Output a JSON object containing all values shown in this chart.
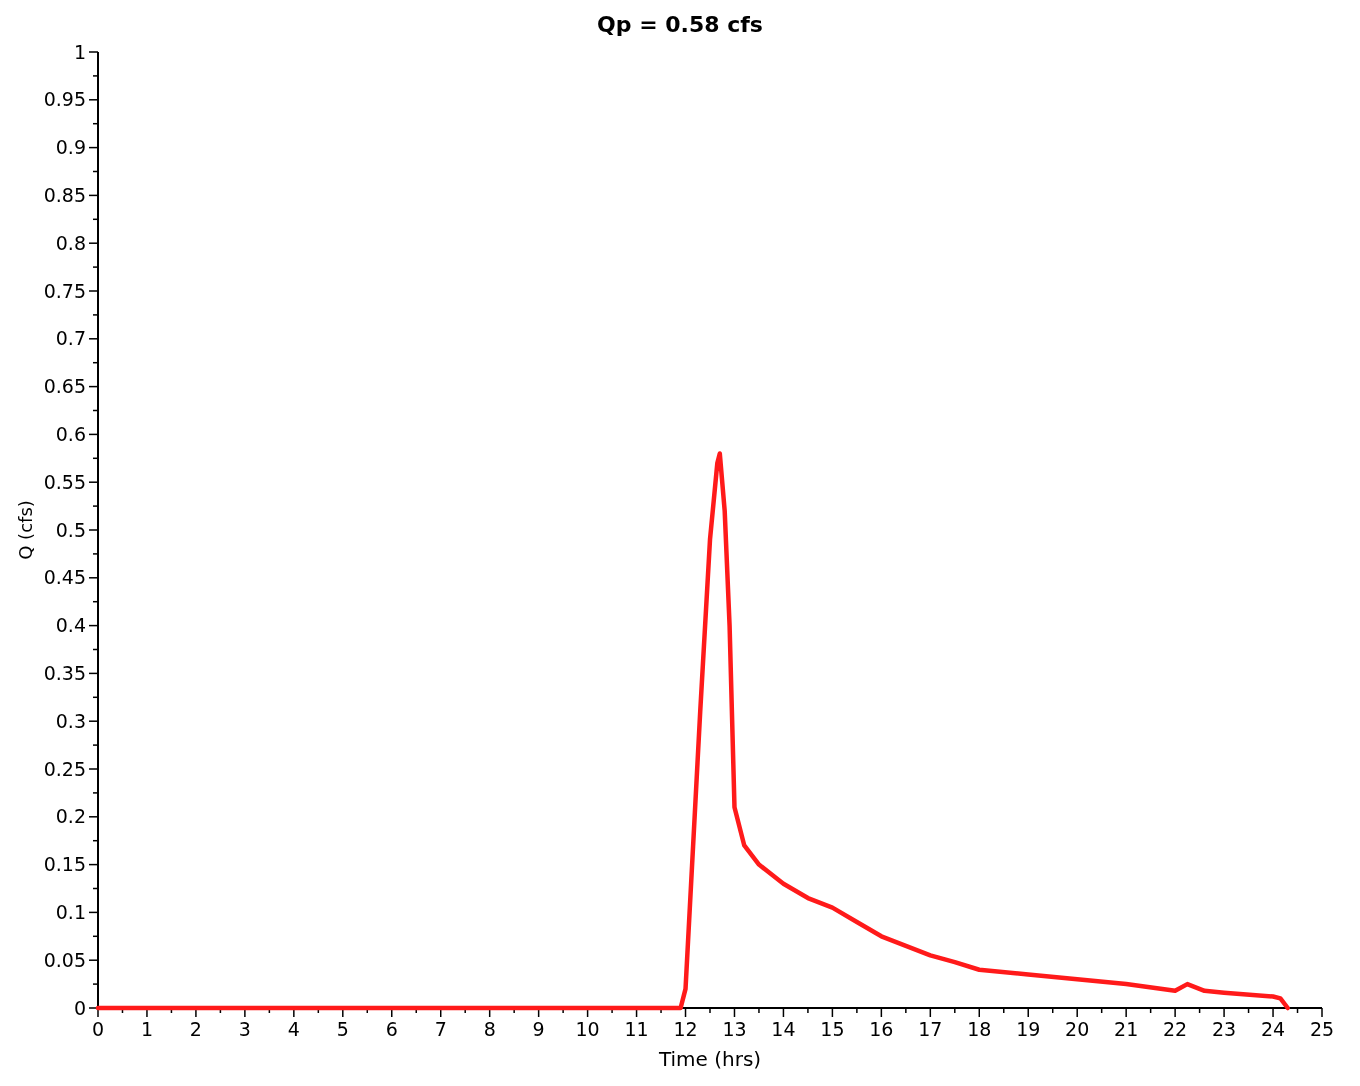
{
  "chart_data": {
    "type": "line",
    "title": "Qp = 0.58 cfs",
    "xlabel": "Time (hrs)",
    "ylabel": "Q (cfs)",
    "x": [
      0,
      6,
      11.9,
      12.0,
      12.3,
      12.5,
      12.65,
      12.7,
      12.8,
      12.9,
      13.0,
      13.2,
      13.5,
      14,
      14.5,
      15,
      15.5,
      16,
      16.5,
      17,
      17.5,
      18,
      19,
      20,
      21,
      22,
      22.25,
      22.6,
      23,
      24,
      24.15,
      24.3
    ],
    "series": [
      {
        "color": "#ff1a1a",
        "values": [
          0,
          0,
          0,
          0.02,
          0.31,
          0.49,
          0.57,
          0.58,
          0.52,
          0.4,
          0.21,
          0.17,
          0.15,
          0.13,
          0.115,
          0.105,
          0.09,
          0.075,
          0.065,
          0.055,
          0.048,
          0.04,
          0.035,
          0.03,
          0.025,
          0.018,
          0.025,
          0.018,
          0.016,
          0.012,
          0.01,
          0
        ]
      }
    ],
    "xlim": [
      0,
      25
    ],
    "xticks": [
      0,
      {
        "value": 0.5,
        "label": null
      },
      1,
      {
        "value": 1.5,
        "label": null
      },
      2,
      {
        "value": 2.5,
        "label": null
      },
      3,
      {
        "value": 3.5,
        "label": null
      },
      4,
      {
        "value": 4.5,
        "label": null
      },
      5,
      {
        "value": 5.5,
        "label": null
      },
      6,
      {
        "value": 6.5,
        "label": null
      },
      7,
      {
        "value": 7.5,
        "label": null
      },
      8,
      {
        "value": 8.5,
        "label": null
      },
      9,
      {
        "value": 9.5,
        "label": null
      },
      10,
      {
        "value": 10.5,
        "label": null
      },
      11,
      {
        "value": 11.5,
        "label": null
      },
      12,
      {
        "value": 12.5,
        "label": null
      },
      13,
      {
        "value": 13.5,
        "label": null
      },
      14,
      {
        "value": 14.5,
        "label": null
      },
      15,
      {
        "value": 15.5,
        "label": null
      },
      16,
      {
        "value": 16.5,
        "label": null
      },
      17,
      {
        "value": 17.5,
        "label": null
      },
      18,
      {
        "value": 18.5,
        "label": null
      },
      19,
      {
        "value": 19.5,
        "label": null
      },
      20,
      {
        "value": 20.5,
        "label": null
      },
      21,
      {
        "value": 21.5,
        "label": null
      },
      22,
      {
        "value": 22.5,
        "label": null
      },
      23,
      {
        "value": 23.5,
        "label": null
      },
      24,
      {
        "value": 24.5,
        "label": null
      },
      25
    ],
    "ylim": [
      0,
      1
    ],
    "yticks": [
      0,
      {
        "value": 0.025,
        "label": null
      },
      0.05,
      {
        "value": 0.075,
        "label": null
      },
      0.1,
      {
        "value": 0.125,
        "label": null
      },
      0.15,
      {
        "value": 0.175,
        "label": null
      },
      0.2,
      {
        "value": 0.225,
        "label": null
      },
      0.25,
      {
        "value": 0.275,
        "label": null
      },
      0.3,
      {
        "value": 0.325,
        "label": null
      },
      0.35,
      {
        "value": 0.375,
        "label": null
      },
      0.4,
      {
        "value": 0.425,
        "label": null
      },
      0.45,
      {
        "value": 0.475,
        "label": null
      },
      0.5,
      {
        "value": 0.525,
        "label": null
      },
      0.55,
      {
        "value": 0.575,
        "label": null
      },
      0.6,
      {
        "value": 0.625,
        "label": null
      },
      0.65,
      {
        "value": 0.675,
        "label": null
      },
      0.7,
      {
        "value": 0.725,
        "label": null
      },
      0.75,
      {
        "value": 0.775,
        "label": null
      },
      0.8,
      {
        "value": 0.825,
        "label": null
      },
      0.85,
      {
        "value": 0.875,
        "label": null
      },
      0.9,
      {
        "value": 0.925,
        "label": null
      },
      0.95,
      {
        "value": 0.975,
        "label": null
      },
      1
    ],
    "marker": "none",
    "line_style": "solid",
    "grid": false
  }
}
